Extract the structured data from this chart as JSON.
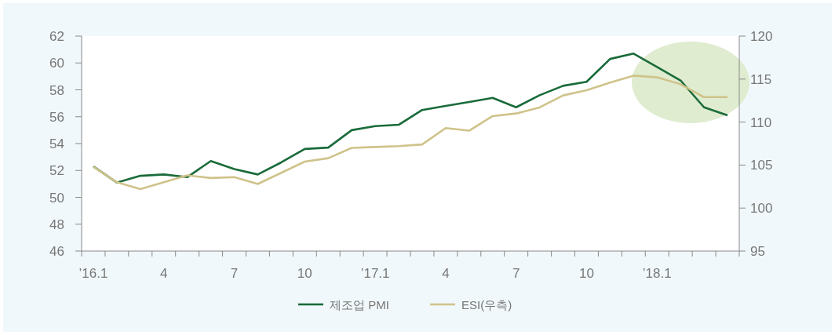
{
  "chart_data": {
    "type": "line",
    "categories": [
      "’16.1",
      null,
      null,
      "4",
      null,
      null,
      "7",
      null,
      null,
      "10",
      null,
      null,
      "’17.1",
      null,
      null,
      "4",
      null,
      null,
      "7",
      null,
      null,
      "10",
      null,
      null,
      "’18.1",
      null,
      null,
      null
    ],
    "series": [
      {
        "name": "제조업 PMI",
        "color": "#1a6b3a",
        "values": [
          52.3,
          51.1,
          51.6,
          51.7,
          51.5,
          52.7,
          52.1,
          51.7,
          52.6,
          53.6,
          53.7,
          55.0,
          55.3,
          55.4,
          56.5,
          56.8,
          57.1,
          57.4,
          56.7,
          57.6,
          58.3,
          58.6,
          60.3,
          60.7,
          59.7,
          58.7,
          56.7,
          56.1
        ]
      },
      {
        "name": "ESI(우측)",
        "color": "#cfc38a",
        "axis": "y2",
        "values": [
          104.8,
          103.0,
          102.2,
          103.0,
          103.8,
          103.5,
          103.6,
          102.8,
          104.1,
          105.4,
          105.8,
          107.0,
          107.1,
          107.2,
          107.4,
          109.3,
          109.0,
          110.7,
          111.0,
          111.7,
          113.1,
          113.7,
          114.6,
          115.4,
          115.2,
          114.4,
          112.9,
          112.9
        ]
      }
    ],
    "ylim": [
      46,
      62
    ],
    "yticks": [
      46,
      48,
      50,
      52,
      54,
      56,
      58,
      60,
      62
    ],
    "y2lim": [
      95,
      120
    ],
    "y2ticks": [
      95,
      100,
      105,
      110,
      115,
      120
    ],
    "grid": false,
    "legend": "bottom"
  }
}
